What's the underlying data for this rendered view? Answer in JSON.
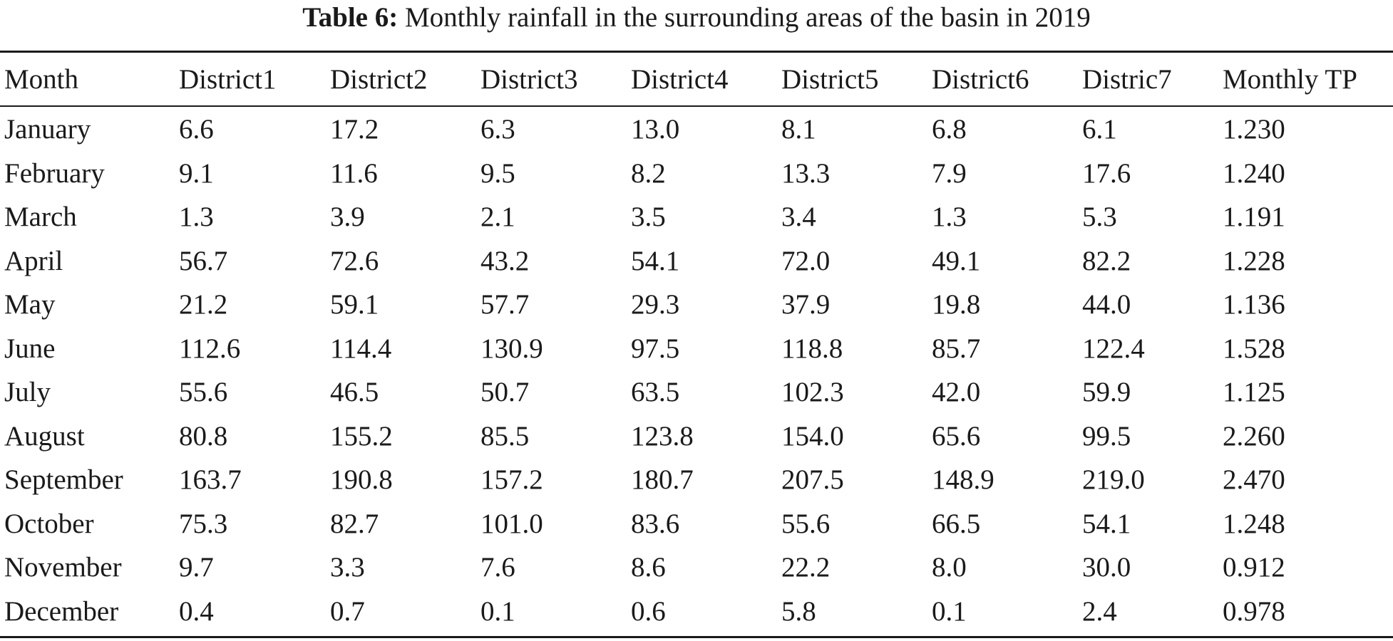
{
  "caption": {
    "label": "Table 6:",
    "text": "Monthly rainfall in the surrounding areas of the basin in 2019"
  },
  "table": {
    "headers": [
      "Month",
      "District1",
      "District2",
      "District3",
      "District4",
      "District5",
      "District6",
      "Distric7",
      "Monthly TP"
    ],
    "rows": [
      [
        "January",
        "6.6",
        "17.2",
        "6.3",
        "13.0",
        "8.1",
        "6.8",
        "6.1",
        "1.230"
      ],
      [
        "February",
        "9.1",
        "11.6",
        "9.5",
        "8.2",
        "13.3",
        "7.9",
        "17.6",
        "1.240"
      ],
      [
        "March",
        "1.3",
        "3.9",
        "2.1",
        "3.5",
        "3.4",
        "1.3",
        "5.3",
        "1.191"
      ],
      [
        "April",
        "56.7",
        "72.6",
        "43.2",
        "54.1",
        "72.0",
        "49.1",
        "82.2",
        "1.228"
      ],
      [
        "May",
        "21.2",
        "59.1",
        "57.7",
        "29.3",
        "37.9",
        "19.8",
        "44.0",
        "1.136"
      ],
      [
        "June",
        "112.6",
        "114.4",
        "130.9",
        "97.5",
        "118.8",
        "85.7",
        "122.4",
        "1.528"
      ],
      [
        "July",
        "55.6",
        "46.5",
        "50.7",
        "63.5",
        "102.3",
        "42.0",
        "59.9",
        "1.125"
      ],
      [
        "August",
        "80.8",
        "155.2",
        "85.5",
        "123.8",
        "154.0",
        "65.6",
        "99.5",
        "2.260"
      ],
      [
        "September",
        "163.7",
        "190.8",
        "157.2",
        "180.7",
        "207.5",
        "148.9",
        "219.0",
        "2.470"
      ],
      [
        "October",
        "75.3",
        "82.7",
        "101.0",
        "83.6",
        "55.6",
        "66.5",
        "54.1",
        "1.248"
      ],
      [
        "November",
        "9.7",
        "3.3",
        "7.6",
        "8.6",
        "22.2",
        "8.0",
        "30.0",
        "0.912"
      ],
      [
        "December",
        "0.4",
        "0.7",
        "0.1",
        "0.6",
        "5.8",
        "0.1",
        "2.4",
        "0.978"
      ]
    ]
  }
}
